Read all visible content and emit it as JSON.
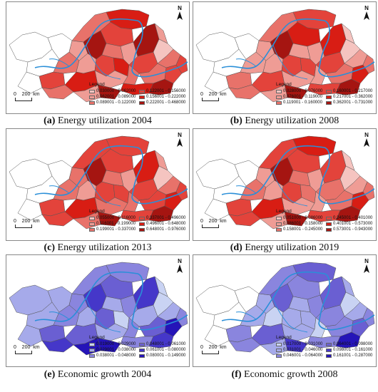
{
  "north_label": "N",
  "scale_label": "0    200  km",
  "legend_title": "Legend",
  "panels": [
    {
      "letter": "(a)",
      "title": "Energy utilization 2004",
      "colors": [
        "#f5c4c0",
        "#ef9c95",
        "#e8726a",
        "#e3433b",
        "#d81d14",
        "#a51511"
      ],
      "legend": [
        "0.030000 - 0.062000",
        "0.062001 - 0.089000",
        "0.089001 - 0.122000",
        "0.122001 - 0.156000",
        "0.156001 - 0.222000",
        "0.222001 - 0.468000"
      ]
    },
    {
      "letter": "(b)",
      "title": "Energy utilization 2008",
      "colors": [
        "#f5c4c0",
        "#ef9c95",
        "#e8726a",
        "#e3433b",
        "#d81d14",
        "#a51511"
      ],
      "legend": [
        "0.028000 - 0.076000",
        "0.076001 - 0.119000",
        "0.119001 - 0.160000",
        "0.160001 - 0.217000",
        "0.217001 - 0.362000",
        "0.362001 - 0.731000"
      ]
    },
    {
      "letter": "(c)",
      "title": "Energy utilization 2013",
      "colors": [
        "#f5c4c0",
        "#ef9c95",
        "#e8726a",
        "#e3433b",
        "#d81d14",
        "#a51511"
      ],
      "legend": [
        "0.055000 - 0.116000",
        "0.116001 - 0.199000",
        "0.199001 - 0.337000",
        "0.337001 - 0.496000",
        "0.496001 - 0.648000",
        "0.648001 - 0.976000"
      ]
    },
    {
      "letter": "(d)",
      "title": "Energy utilization 2019",
      "colors": [
        "#f5c4c0",
        "#ef9c95",
        "#e8726a",
        "#e3433b",
        "#d81d14",
        "#a51511"
      ],
      "legend": [
        "0.051000 - 0.086000",
        "0.086001 - 0.158000",
        "0.158001 - 0.245000",
        "0.245001 - 0.401000",
        "0.401001 - 0.573000",
        "0.573001 - 0.943000"
      ]
    },
    {
      "letter": "(e)",
      "title": "Economic growth 2004",
      "colors": [
        "#c9d3f3",
        "#a6aaea",
        "#8a85de",
        "#6a5fd2",
        "#4537c9",
        "#2514b8"
      ],
      "legend": [
        "0.019000 - 0.029000",
        "0.029001 - 0.038000",
        "0.038001 - 0.048000",
        "0.048001 - 0.061000",
        "0.061001 - 0.080000",
        "0.080001 - 0.149000"
      ]
    },
    {
      "letter": "(f)",
      "title": "Economic growth 2008",
      "colors": [
        "#c9d3f3",
        "#a6aaea",
        "#8a85de",
        "#6a5fd2",
        "#4537c9",
        "#2514b8"
      ],
      "legend": [
        "0.017000 - 0.031000",
        "0.031001 - 0.046000",
        "0.046001 - 0.064000",
        "0.064001 - 0.098000",
        "0.098001 - 0.161000",
        "0.161001 - 0.287000"
      ]
    }
  ]
}
